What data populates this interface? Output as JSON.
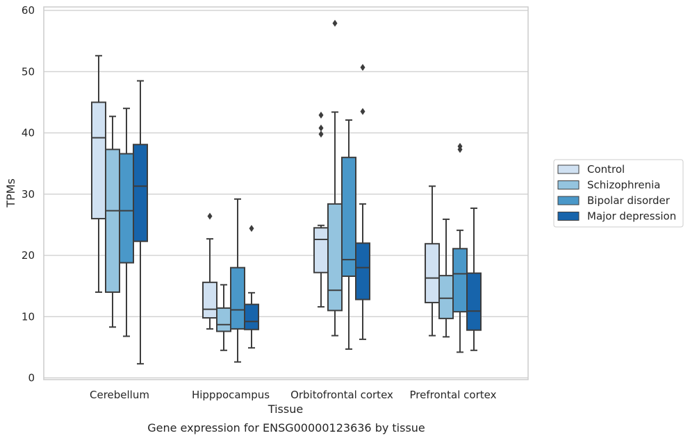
{
  "chart_data": {
    "type": "box",
    "title": "",
    "caption": "Gene expression for ENSG00000123636 by tissue",
    "xlabel": "Tissue",
    "ylabel": "TPMs",
    "ylim": [
      0,
      60
    ],
    "yticks": [
      0,
      10,
      20,
      30,
      40,
      50,
      60
    ],
    "grid": "horizontal",
    "legend_position": "right",
    "categories": [
      "Cerebellum",
      "Hipppocampus",
      "Orbitofrontal cortex",
      "Prefrontal cortex"
    ],
    "series": [
      {
        "name": "Control",
        "color": "#d0e1f2",
        "boxes": [
          {
            "whislo": 14.0,
            "q1": 26.0,
            "med": 39.2,
            "q3": 45.0,
            "whishi": 52.6,
            "fliers": []
          },
          {
            "whislo": 8.0,
            "q1": 9.8,
            "med": 11.2,
            "q3": 15.6,
            "whishi": 22.7,
            "fliers": [
              26.4
            ]
          },
          {
            "whislo": 11.6,
            "q1": 17.2,
            "med": 22.6,
            "q3": 24.5,
            "whishi": 24.9,
            "fliers": [
              39.8,
              40.8,
              42.9
            ]
          },
          {
            "whislo": 6.9,
            "q1": 12.3,
            "med": 16.3,
            "q3": 21.9,
            "whishi": 31.3,
            "fliers": []
          }
        ]
      },
      {
        "name": "Schizophrenia",
        "color": "#94c4df",
        "boxes": [
          {
            "whislo": 8.3,
            "q1": 14.0,
            "med": 27.3,
            "q3": 37.3,
            "whishi": 42.7,
            "fliers": []
          },
          {
            "whislo": 4.5,
            "q1": 7.6,
            "med": 8.7,
            "q3": 11.4,
            "whishi": 15.2,
            "fliers": []
          },
          {
            "whislo": 6.9,
            "q1": 11.0,
            "med": 14.3,
            "q3": 28.4,
            "whishi": 43.4,
            "fliers": [
              57.9
            ]
          },
          {
            "whislo": 6.7,
            "q1": 9.7,
            "med": 13.0,
            "q3": 16.7,
            "whishi": 25.9,
            "fliers": []
          }
        ]
      },
      {
        "name": "Bipolar disorder",
        "color": "#4a98c9",
        "boxes": [
          {
            "whislo": 6.8,
            "q1": 18.8,
            "med": 27.3,
            "q3": 36.6,
            "whishi": 44.0,
            "fliers": []
          },
          {
            "whislo": 2.6,
            "q1": 8.0,
            "med": 11.1,
            "q3": 18.0,
            "whishi": 29.2,
            "fliers": []
          },
          {
            "whislo": 4.7,
            "q1": 16.6,
            "med": 19.3,
            "q3": 36.0,
            "whishi": 42.1,
            "fliers": []
          },
          {
            "whislo": 4.2,
            "q1": 10.8,
            "med": 17.0,
            "q3": 21.1,
            "whishi": 24.1,
            "fliers": [
              37.3,
              37.8
            ]
          }
        ]
      },
      {
        "name": "Major depression",
        "color": "#1764ab",
        "boxes": [
          {
            "whislo": 2.3,
            "q1": 22.3,
            "med": 31.3,
            "q3": 38.1,
            "whishi": 48.5,
            "fliers": []
          },
          {
            "whislo": 4.9,
            "q1": 7.9,
            "med": 9.2,
            "q3": 12.0,
            "whishi": 13.9,
            "fliers": [
              24.4
            ]
          },
          {
            "whislo": 6.3,
            "q1": 12.8,
            "med": 18.0,
            "q3": 22.0,
            "whishi": 28.4,
            "fliers": [
              43.5,
              50.7
            ]
          },
          {
            "whislo": 4.5,
            "q1": 7.8,
            "med": 10.9,
            "q3": 17.1,
            "whishi": 27.7,
            "fliers": []
          }
        ]
      }
    ]
  }
}
